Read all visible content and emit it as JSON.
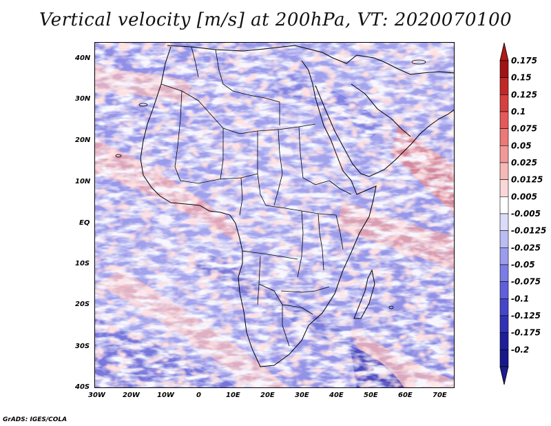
{
  "title": "Vertical velocity [m/s] at 200hPa, VT: 2020070100",
  "map": {
    "lat_labels": [
      "40N",
      "30N",
      "20N",
      "10N",
      "EQ",
      "10S",
      "20S",
      "30S",
      "40S"
    ],
    "lon_labels": [
      "30W",
      "20W",
      "10W",
      "0",
      "10E",
      "20E",
      "30E",
      "40E",
      "50E",
      "60E",
      "70E"
    ],
    "lon_range": [
      -30,
      75
    ],
    "lat_range": [
      -40,
      45
    ]
  },
  "colorbar": {
    "levels": [
      "0.175",
      "0.15",
      "0.125",
      "0.1",
      "0.075",
      "0.05",
      "0.025",
      "0.0125",
      "0.005",
      "-0.005",
      "-0.0125",
      "-0.025",
      "-0.05",
      "-0.075",
      "-0.1",
      "-0.125",
      "-0.175",
      "-0.2"
    ],
    "colors": [
      "#a01414",
      "#c02828",
      "#d64040",
      "#e45a5a",
      "#ec7878",
      "#f29898",
      "#f7b8b8",
      "#fbd8d8",
      "#ffffff",
      "#dcdcfa",
      "#bcbcf4",
      "#9c9cee",
      "#7c7ce6",
      "#6060dc",
      "#4646ca",
      "#3232b4",
      "#20209a",
      "#18188a"
    ],
    "top_arrow_color": "#b01818",
    "bottom_arrow_color": "#1c1c8c"
  },
  "footer": "GrADS: IGES/COLA"
}
